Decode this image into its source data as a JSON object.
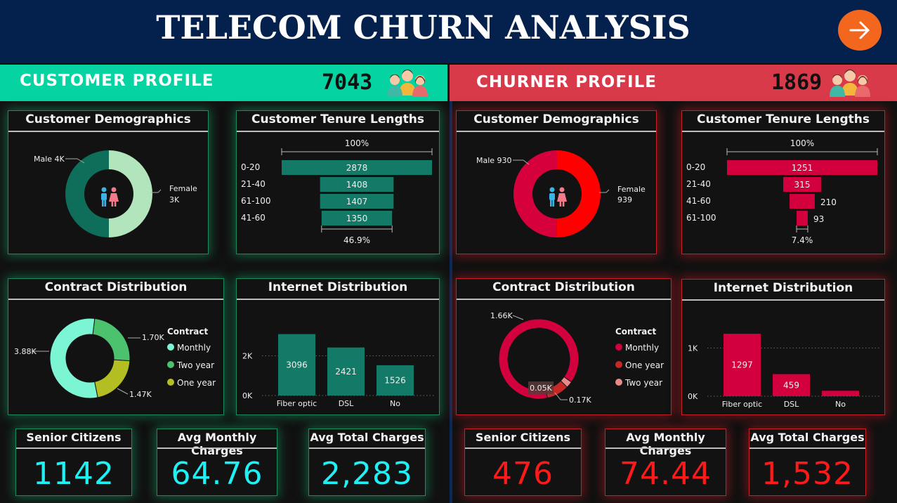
{
  "header": {
    "title": "TELECOM CHURN ANALYSIS",
    "next_icon": "arrow-right-icon"
  },
  "customer": {
    "band_label": "CUSTOMER PROFILE",
    "count": "7043",
    "demographics": {
      "title": "Customer Demographics",
      "male_label": "Male 4K",
      "female_label": "Female",
      "female_value": "3K",
      "male_share": 0.5,
      "colors": {
        "male": "#0f6e5a",
        "female": "#b2e5bc"
      }
    },
    "tenure": {
      "title": "Customer Tenure Lengths",
      "top_pct": "100%",
      "bottom_pct": "46.9%",
      "rows": [
        {
          "label": "0-20",
          "value": 2878
        },
        {
          "label": "21-40",
          "value": 1408
        },
        {
          "label": "61-100",
          "value": 1407
        },
        {
          "label": "41-60",
          "value": 1350
        }
      ],
      "bar_color": "#127a66"
    },
    "contract": {
      "title": "Contract Distribution",
      "legend_title": "Contract",
      "slices": [
        {
          "name": "Monthly",
          "value": 3.88,
          "label": "3.88K",
          "color": "#7cf5d4"
        },
        {
          "name": "Two year",
          "value": 1.7,
          "label": "1.70K",
          "color": "#4cc26e"
        },
        {
          "name": "One year",
          "value": 1.47,
          "label": "1.47K",
          "color": "#b2be22"
        }
      ]
    },
    "internet": {
      "title": "Internet Distribution",
      "y_ticks": [
        "2K",
        "0K"
      ],
      "ymax": 3400,
      "bars": [
        {
          "category": "Fiber optic",
          "value": 3096
        },
        {
          "category": "DSL",
          "value": 2421
        },
        {
          "category": "No",
          "value": 1526
        }
      ],
      "bar_color": "#127a66"
    },
    "kpis": [
      {
        "title": "Senior Citizens",
        "value": "1142"
      },
      {
        "title": "Avg Monthly Charges",
        "value": "64.76"
      },
      {
        "title": "Avg Total Charges",
        "value": "2,283"
      }
    ]
  },
  "churner": {
    "band_label": "CHURNER PROFILE",
    "count": "1869",
    "demographics": {
      "title": "Customer Demographics",
      "male_label": "Male 930",
      "female_label": "Female",
      "female_value": "939",
      "male_share": 0.4976,
      "colors": {
        "male": "#d6003c",
        "female": "#ff0000"
      }
    },
    "tenure": {
      "title": "Customer Tenure Lengths",
      "top_pct": "100%",
      "bottom_pct": "7.4%",
      "rows": [
        {
          "label": "0-20",
          "value": 1251
        },
        {
          "label": "21-40",
          "value": 315
        },
        {
          "label": "41-60",
          "value": 210
        },
        {
          "label": "61-100",
          "value": 93
        }
      ],
      "bar_color": "#d2003c"
    },
    "contract": {
      "title": "Contract Distribution",
      "legend_title": "Contract",
      "slices": [
        {
          "name": "Monthly",
          "value": 1.66,
          "label": "1.66K",
          "color": "#d2003c"
        },
        {
          "name": "One year",
          "value": 0.17,
          "label": "0.17K",
          "color": "#c62828"
        },
        {
          "name": "Two year",
          "value": 0.05,
          "label": "0.05K",
          "color": "#e88a8a"
        }
      ]
    },
    "internet": {
      "title": "Internet Distribution",
      "y_ticks": [
        "1K",
        "0K"
      ],
      "ymax": 1400,
      "bars": [
        {
          "category": "Fiber optic",
          "value": 1297
        },
        {
          "category": "DSL",
          "value": 459
        },
        {
          "category": "No",
          "value": 113
        }
      ],
      "bar_color": "#d2003c"
    },
    "kpis": [
      {
        "title": "Senior Citizens",
        "value": "476"
      },
      {
        "title": "Avg Monthly Charges",
        "value": "74.44"
      },
      {
        "title": "Avg Total Charges",
        "value": "1,532"
      }
    ]
  }
}
